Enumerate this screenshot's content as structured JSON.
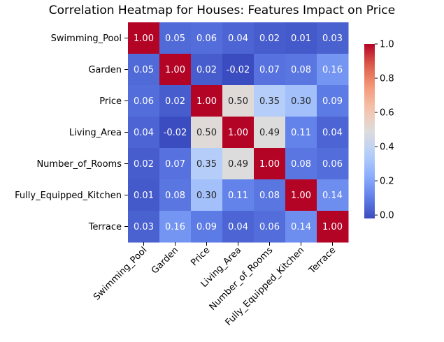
{
  "chart_data": {
    "type": "heatmap",
    "title": "Correlation Heatmap for Houses: Features Impact on Price",
    "xlabel": "",
    "ylabel": "",
    "row_labels": [
      "Swimming_Pool",
      "Garden",
      "Price",
      "Living_Area",
      "Number_of_Rooms",
      "Fully_Equipped_Kitchen",
      "Terrace"
    ],
    "col_labels": [
      "Swimming_Pool",
      "Garden",
      "Price",
      "Living_Area",
      "Number_of_Rooms",
      "Fully_Equipped_Kitchen",
      "Terrace"
    ],
    "values": [
      [
        1.0,
        0.05,
        0.06,
        0.04,
        0.02,
        0.01,
        0.03
      ],
      [
        0.05,
        1.0,
        0.02,
        -0.02,
        0.07,
        0.08,
        0.16
      ],
      [
        0.06,
        0.02,
        1.0,
        0.5,
        0.35,
        0.3,
        0.09
      ],
      [
        0.04,
        -0.02,
        0.5,
        1.0,
        0.49,
        0.11,
        0.04
      ],
      [
        0.02,
        0.07,
        0.35,
        0.49,
        1.0,
        0.08,
        0.06
      ],
      [
        0.01,
        0.08,
        0.3,
        0.11,
        0.08,
        1.0,
        0.14
      ],
      [
        0.03,
        0.16,
        0.09,
        0.04,
        0.06,
        0.14,
        1.0
      ]
    ],
    "annotation_format": "0.00",
    "colormap": "coolwarm",
    "vmin": -0.02,
    "vmax": 1.0,
    "colorbar": {
      "ticks": [
        0.0,
        0.2,
        0.4,
        0.6,
        0.8,
        1.0
      ],
      "tick_labels": [
        "0.0",
        "0.2",
        "0.4",
        "0.6",
        "0.8",
        "1.0"
      ]
    },
    "grid": false
  }
}
